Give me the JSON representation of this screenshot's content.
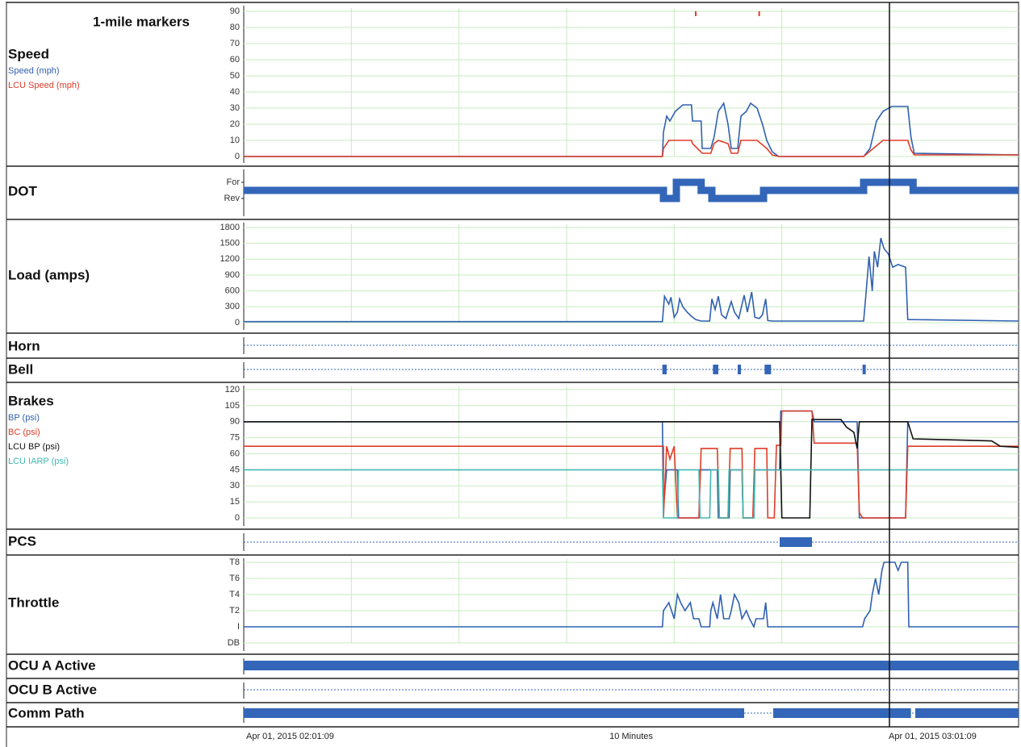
{
  "markers": {
    "label": "1-mile markers",
    "x": [
      42.0,
      47.9
    ],
    "color": "#e03c28"
  },
  "time_axis": {
    "xlim": [
      0,
      72
    ],
    "xticks": [
      0,
      10,
      20,
      30,
      40,
      50,
      60
    ],
    "start_label": "Apr 01, 2015  02:01:09",
    "span_label": "10 Minutes",
    "end_label": "Apr 01, 2015  03:01:09",
    "cursor": 60
  },
  "chart_data": [
    {
      "type": "line",
      "title": "Speed",
      "ylim": [
        0,
        90
      ],
      "yticks": [
        0,
        10,
        20,
        30,
        40,
        50,
        60,
        70,
        80,
        90
      ],
      "grid": true,
      "series": [
        {
          "name": "Speed (mph)",
          "color": "#3060b0",
          "x": [
            0,
            38.9,
            39.0,
            39.3,
            39.6,
            40.1,
            40.8,
            41.6,
            41.7,
            42.5,
            42.6,
            43.4,
            43.7,
            44.1,
            44.6,
            45.0,
            45.3,
            45.9,
            46.2,
            46.7,
            47.1,
            47.7,
            48.2,
            48.6,
            49.1,
            49.7,
            57.6,
            58.2,
            58.8,
            59.4,
            60.2,
            61.7,
            62.0,
            62.3,
            72
          ],
          "values": [
            0,
            0,
            15,
            25,
            22,
            28,
            32,
            32,
            22,
            22,
            5,
            5,
            12,
            28,
            33,
            20,
            5,
            5,
            25,
            28,
            33,
            30,
            20,
            10,
            3,
            0,
            0,
            5,
            22,
            28,
            31,
            31,
            12,
            2,
            1
          ]
        },
        {
          "name": "LCU Speed (mph)",
          "color": "#e03c28",
          "x": [
            0,
            38.9,
            39.0,
            39.5,
            41.6,
            41.7,
            42.6,
            43.4,
            43.7,
            44.1,
            45.0,
            45.3,
            45.9,
            46.2,
            47.7,
            48.6,
            49.1,
            49.7,
            57.6,
            58.5,
            59.4,
            61.7,
            62.0,
            62.3,
            72
          ],
          "values": [
            0,
            0,
            5,
            10,
            10,
            8,
            2,
            2,
            8,
            10,
            8,
            2,
            2,
            10,
            10,
            5,
            1,
            0,
            0,
            5,
            10,
            10,
            4,
            1,
            1
          ]
        }
      ]
    },
    {
      "type": "state",
      "title": "DOT",
      "ylim": [
        -1,
        1
      ],
      "yticks": [
        {
          "value": 1,
          "label": "For"
        },
        {
          "value": -1,
          "label": "Rev"
        }
      ],
      "color": "#3366b8",
      "x": [
        0,
        39.0,
        39.0,
        40.2,
        40.2,
        42.5,
        42.5,
        43.5,
        43.5,
        48.3,
        48.3,
        57.6,
        57.6,
        62.2,
        62.2,
        72
      ],
      "values": [
        0,
        0,
        -1,
        -1,
        1,
        1,
        0,
        0,
        -1,
        -1,
        0,
        0,
        1,
        1,
        0,
        0
      ]
    },
    {
      "type": "line",
      "title": "Load (amps)",
      "ylim": [
        0,
        1800
      ],
      "yticks": [
        0,
        300,
        600,
        900,
        1200,
        1500,
        1800
      ],
      "grid": true,
      "series": [
        {
          "color": "#3060b0",
          "x": [
            0,
            38.9,
            39.1,
            39.5,
            39.7,
            40.0,
            40.3,
            40.5,
            40.8,
            41.2,
            41.6,
            42.0,
            42.5,
            43.3,
            43.5,
            43.8,
            44.1,
            44.4,
            44.8,
            45.3,
            45.6,
            46.0,
            46.5,
            46.8,
            47.2,
            47.5,
            47.9,
            48.2,
            48.5,
            48.7,
            49.2,
            57.6,
            57.8,
            58.1,
            58.4,
            58.6,
            58.9,
            59.2,
            59.5,
            59.9,
            60.3,
            60.8,
            61.5,
            61.7,
            72
          ],
          "values": [
            20,
            20,
            500,
            350,
            480,
            100,
            200,
            450,
            300,
            200,
            120,
            60,
            30,
            30,
            450,
            250,
            500,
            150,
            80,
            400,
            200,
            80,
            520,
            200,
            580,
            100,
            80,
            150,
            450,
            40,
            30,
            30,
            500,
            1250,
            600,
            1350,
            1050,
            1600,
            1400,
            1300,
            1050,
            1100,
            1050,
            60,
            30
          ]
        }
      ]
    },
    {
      "type": "events",
      "title": "Horn",
      "color": "#3366b8",
      "intervals": []
    },
    {
      "type": "events",
      "title": "Bell",
      "color": "#3366b8",
      "intervals": [
        [
          38.9,
          39.3
        ],
        [
          43.6,
          44.1
        ],
        [
          45.9,
          46.2
        ],
        [
          48.4,
          49.0
        ],
        [
          57.5,
          57.8
        ]
      ]
    },
    {
      "type": "line",
      "title": "Brakes",
      "ylim": [
        0,
        120
      ],
      "yticks": [
        0,
        15,
        30,
        45,
        60,
        75,
        90,
        105,
        120
      ],
      "grid": true,
      "series": [
        {
          "name": "BP (psi)",
          "color": "#3060b0",
          "x": [
            0,
            38.9,
            39.0,
            39.3,
            40.3,
            40.4,
            42.3,
            42.4,
            44.0,
            44.1,
            45.1,
            45.2,
            46.3,
            46.4,
            47.4,
            47.5,
            49.8,
            49.9,
            52.8,
            53.0,
            57.0,
            57.2,
            61.5,
            61.7,
            72
          ],
          "values": [
            90,
            90,
            10,
            45,
            45,
            0,
            0,
            45,
            45,
            0,
            0,
            45,
            45,
            0,
            0,
            45,
            45,
            100,
            100,
            90,
            90,
            0,
            0,
            90,
            90
          ]
        },
        {
          "name": "BC (psi)",
          "color": "#e03c28",
          "x": [
            0,
            39.0,
            39.0,
            39.3,
            39.6,
            40.0,
            40.3,
            42.3,
            42.5,
            44.0,
            44.2,
            45.0,
            45.2,
            46.3,
            46.4,
            47.3,
            47.5,
            48.6,
            48.7,
            49.3,
            49.5,
            49.9,
            50.0,
            52.8,
            53.0,
            57.0,
            57.2,
            57.5,
            61.5,
            61.7,
            72
          ],
          "values": [
            67,
            67,
            0,
            67,
            55,
            67,
            0,
            0,
            65,
            65,
            0,
            0,
            65,
            65,
            0,
            0,
            65,
            65,
            0,
            0,
            68,
            68,
            100,
            100,
            70,
            70,
            5,
            0,
            0,
            67,
            67
          ]
        },
        {
          "name": "LCU BP (psi)",
          "color": "#111111",
          "x": [
            0,
            49.8,
            50.0,
            52.6,
            52.8,
            55.5,
            56.0,
            56.7,
            57.0,
            57.2,
            61.7,
            62.2,
            69.5,
            70.3,
            72
          ],
          "values": [
            90,
            90,
            0,
            0,
            92,
            92,
            85,
            80,
            65,
            90,
            90,
            74,
            72,
            67,
            66
          ]
        },
        {
          "name": "LCU IARP (psi)",
          "color": "#40b8b0",
          "x": [
            0,
            38.9,
            39.0,
            40.3,
            40.4,
            42.3,
            42.4,
            43.3,
            43.4,
            44.1,
            44.2,
            45.0,
            45.1,
            46.3,
            46.4,
            47.4,
            47.5,
            49.9,
            72
          ],
          "values": [
            45,
            45,
            0,
            0,
            45,
            45,
            0,
            0,
            45,
            45,
            0,
            0,
            45,
            45,
            0,
            0,
            45,
            45,
            45
          ]
        }
      ]
    },
    {
      "type": "events",
      "title": "PCS",
      "color": "#3366b8",
      "intervals": [
        [
          49.8,
          52.8
        ]
      ]
    },
    {
      "type": "line",
      "title": "Throttle",
      "ylim": [
        -2,
        8
      ],
      "yticks": [
        {
          "value": 8,
          "label": "T8"
        },
        {
          "value": 6,
          "label": "T6"
        },
        {
          "value": 4,
          "label": "T4"
        },
        {
          "value": 2,
          "label": "T2"
        },
        {
          "value": 0,
          "label": "I"
        },
        {
          "value": -2,
          "label": "DB"
        }
      ],
      "grid": true,
      "series": [
        {
          "color": "#3060b0",
          "x": [
            0,
            38.9,
            39.0,
            39.5,
            40.0,
            40.3,
            40.6,
            41.0,
            41.5,
            41.8,
            42.3,
            42.5,
            43.3,
            43.4,
            43.6,
            44.0,
            44.3,
            44.6,
            45.1,
            45.3,
            45.6,
            46.0,
            46.3,
            46.7,
            47.0,
            47.4,
            47.6,
            48.3,
            48.5,
            48.7,
            57.5,
            57.7,
            58.2,
            58.4,
            58.7,
            59.0,
            59.3,
            59.5,
            60.5,
            60.8,
            61.1,
            61.7,
            61.8,
            72
          ],
          "values": [
            0,
            0,
            2,
            3,
            1,
            4,
            3,
            2,
            3,
            1,
            1,
            0,
            0,
            2,
            3,
            1,
            4,
            1,
            1,
            2,
            4,
            3,
            1,
            2,
            1,
            0,
            1,
            1,
            3,
            0,
            0,
            1,
            2,
            4,
            6,
            4,
            7,
            8,
            8,
            7,
            8,
            8,
            0,
            0
          ]
        }
      ]
    },
    {
      "type": "events",
      "title": "OCU A Active",
      "color": "#3366b8",
      "intervals": [
        [
          0,
          72
        ]
      ]
    },
    {
      "type": "events",
      "title": "OCU B Active",
      "color": "#3366b8",
      "intervals": []
    },
    {
      "type": "events",
      "title": "Comm Path",
      "color": "#3366b8",
      "intervals": [
        [
          0,
          46.5
        ],
        [
          49.2,
          62.0
        ],
        [
          62.4,
          72
        ]
      ]
    }
  ]
}
